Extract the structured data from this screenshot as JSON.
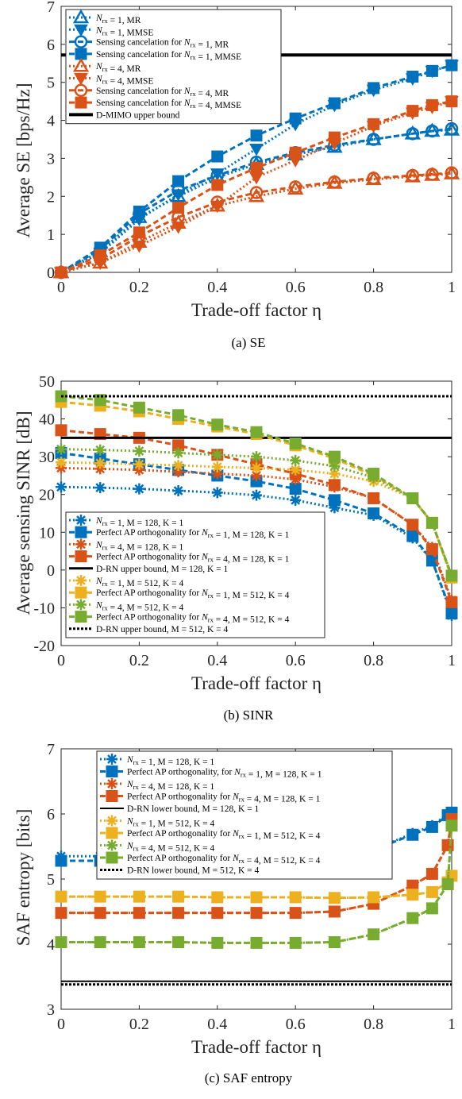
{
  "chart_data": [
    {
      "type": "line",
      "caption": "(a) SE",
      "xlabel": "Trade-off factor η",
      "ylabel": "Average SE [bps/Hz]",
      "xlim": [
        0,
        1
      ],
      "ylim": [
        0,
        7
      ],
      "xticks": [
        "0",
        "0.2",
        "0.4",
        "0.6",
        "0.8",
        "1"
      ],
      "yticks": [
        "0",
        "1",
        "2",
        "3",
        "4",
        "5",
        "6",
        "7"
      ],
      "legend_position": "top-left",
      "x": [
        0,
        0.1,
        0.2,
        0.3,
        0.4,
        0.5,
        0.6,
        0.7,
        0.8,
        0.9,
        0.95,
        1
      ],
      "series": [
        {
          "name": "N_rx = 1, MR",
          "color": "#0072BD",
          "dash": "dot",
          "marker": "triangle-up-open",
          "values": [
            0,
            0.55,
            1.45,
            2.0,
            2.5,
            2.85,
            3.1,
            3.3,
            3.5,
            3.65,
            3.72,
            3.75
          ]
        },
        {
          "name": "N_rx = 1, MMSE",
          "color": "#0072BD",
          "dash": "dot",
          "marker": "triangle-down",
          "values": [
            0,
            0.5,
            1.4,
            2.05,
            2.6,
            3.25,
            3.9,
            4.4,
            4.8,
            5.1,
            5.3,
            5.45
          ]
        },
        {
          "name": "Sensing cancelation for N_rx = 1, MR",
          "color": "#0072BD",
          "dash": "dash",
          "marker": "circle-open",
          "values": [
            0,
            0.6,
            1.55,
            2.15,
            2.55,
            2.9,
            3.15,
            3.35,
            3.5,
            3.65,
            3.72,
            3.78
          ]
        },
        {
          "name": "Sensing cancelation for N_rx = 1, MMSE",
          "color": "#0072BD",
          "dash": "dash",
          "marker": "square",
          "values": [
            0,
            0.65,
            1.6,
            2.4,
            3.05,
            3.6,
            4.05,
            4.45,
            4.85,
            5.15,
            5.3,
            5.45
          ]
        },
        {
          "name": "N_rx = 4, MR",
          "color": "#D95319",
          "dash": "dot",
          "marker": "triangle-up-open",
          "values": [
            0,
            0.25,
            0.8,
            1.3,
            1.75,
            2.0,
            2.2,
            2.35,
            2.45,
            2.52,
            2.56,
            2.6
          ]
        },
        {
          "name": "N_rx = 4, MMSE",
          "color": "#D95319",
          "dash": "dot",
          "marker": "triangle-down",
          "values": [
            0,
            0.25,
            0.7,
            1.2,
            1.75,
            2.5,
            2.95,
            3.4,
            3.85,
            4.2,
            4.35,
            4.5
          ]
        },
        {
          "name": "Sensing cancelation for N_rx = 4, MR",
          "color": "#D95319",
          "dash": "dash",
          "marker": "circle-open",
          "values": [
            0,
            0.35,
            0.95,
            1.45,
            1.85,
            2.1,
            2.25,
            2.38,
            2.48,
            2.55,
            2.58,
            2.62
          ]
        },
        {
          "name": "Sensing cancelation for N_rx = 4, MMSE",
          "color": "#D95319",
          "dash": "dash",
          "marker": "square",
          "values": [
            0,
            0.45,
            1.05,
            1.7,
            2.3,
            2.75,
            3.15,
            3.55,
            3.9,
            4.25,
            4.4,
            4.5
          ]
        },
        {
          "name": "D-MIMO upper bound",
          "color": "#000000",
          "dash": "solid",
          "marker": "none",
          "width": 4,
          "values": [
            5.72,
            5.72,
            5.72,
            5.72,
            5.72,
            5.72,
            5.72,
            5.72,
            5.72,
            5.72,
            5.72,
            5.72
          ]
        }
      ]
    },
    {
      "type": "line",
      "caption": "(b) SINR",
      "xlabel": "Trade-off factor η",
      "ylabel": "Average sensing SINR [dB]",
      "xlim": [
        0,
        1
      ],
      "ylim": [
        -20,
        50
      ],
      "xticks": [
        "0",
        "0.2",
        "0.4",
        "0.6",
        "0.8",
        "1"
      ],
      "yticks": [
        "-20",
        "-10",
        "0",
        "10",
        "20",
        "30",
        "40",
        "50"
      ],
      "legend_position": "bottom-left",
      "x": [
        0,
        0.1,
        0.2,
        0.3,
        0.4,
        0.5,
        0.6,
        0.7,
        0.8,
        0.9,
        0.95,
        1
      ],
      "series": [
        {
          "name": "N_rx = 1, M = 128, K = 1",
          "color": "#0072BD",
          "dash": "dot",
          "marker": "asterisk",
          "values": [
            22,
            21.8,
            21.5,
            21.0,
            20.5,
            19.8,
            18.5,
            16.5,
            14.5,
            8.5,
            2.5,
            -12
          ]
        },
        {
          "name": "Perfect AP orthogonality for N_rx = 1, M = 128, K = 1",
          "color": "#0072BD",
          "dash": "dash",
          "marker": "square",
          "values": [
            31,
            29.5,
            28,
            26.5,
            25,
            23.5,
            21.5,
            18.5,
            15,
            9,
            2.5,
            -11.5
          ]
        },
        {
          "name": "N_rx = 4, M = 128, K = 1",
          "color": "#D95319",
          "dash": "dot",
          "marker": "asterisk",
          "values": [
            27,
            26.8,
            26.5,
            26.0,
            25.5,
            25.0,
            24.0,
            22.0,
            19.0,
            12,
            6,
            -8
          ]
        },
        {
          "name": "Perfect AP orthogonality for N_rx = 4, M = 128, K = 1",
          "color": "#D95319",
          "dash": "dash",
          "marker": "square",
          "values": [
            37,
            36,
            35,
            33,
            30.5,
            28,
            25.5,
            22.5,
            19,
            12,
            5.5,
            -8.5
          ]
        },
        {
          "name": "D-RN upper bound, M = 128, K = 1",
          "color": "#000000",
          "dash": "solid",
          "marker": "none",
          "width": 3,
          "values": [
            35,
            35,
            35,
            35,
            35,
            35,
            35,
            35,
            35,
            35,
            35,
            35
          ]
        },
        {
          "name": "N_rx = 1, M = 512, K = 4",
          "color": "#EDB120",
          "dash": "dot",
          "marker": "asterisk",
          "values": [
            28.5,
            28.3,
            28.0,
            27.7,
            27.3,
            27.0,
            26.5,
            25.5,
            23.5,
            19,
            12.5,
            -2
          ]
        },
        {
          "name": "Perfect AP orthogonality for N_rx = 1, M = 512, K = 4",
          "color": "#EDB120",
          "dash": "dash",
          "marker": "square",
          "values": [
            44.5,
            43.5,
            42,
            40,
            38,
            36,
            33,
            29.5,
            25,
            19,
            12.5,
            -2
          ]
        },
        {
          "name": "N_rx = 4, M = 512, K = 4",
          "color": "#77AC30",
          "dash": "dot",
          "marker": "asterisk",
          "values": [
            32,
            31.8,
            31.5,
            31.0,
            30.5,
            30.0,
            29.0,
            27.5,
            24.5,
            19,
            12.5,
            -1.5
          ]
        },
        {
          "name": "Perfect AP orthogonality for N_rx = 4, M = 512, K = 4",
          "color": "#77AC30",
          "dash": "dash",
          "marker": "square",
          "values": [
            46,
            45,
            43,
            41,
            38.5,
            36.5,
            33.5,
            30,
            25.5,
            19,
            12.5,
            -1.5
          ]
        },
        {
          "name": "D-RN upper bound, M = 512, K = 4",
          "color": "#000000",
          "dash": "densedot",
          "marker": "none",
          "width": 3,
          "values": [
            46,
            46,
            46,
            46,
            46,
            46,
            46,
            46,
            46,
            46,
            46,
            46
          ]
        }
      ]
    },
    {
      "type": "line",
      "caption": "(c) SAF entropy",
      "xlabel": "Trade-off factor η",
      "ylabel": "SAF entropy [bits]",
      "xlim": [
        0,
        1
      ],
      "ylim": [
        3,
        7
      ],
      "xticks": [
        "0",
        "0.2",
        "0.4",
        "0.6",
        "0.8",
        "1"
      ],
      "yticks": [
        "3",
        "4",
        "5",
        "6",
        "7"
      ],
      "legend_position": "top-center",
      "x": [
        0,
        0.1,
        0.2,
        0.3,
        0.4,
        0.5,
        0.6,
        0.7,
        0.8,
        0.9,
        0.95,
        0.99,
        1
      ],
      "series": [
        {
          "name": "N_rx = 1, M = 128, K = 1",
          "color": "#0072BD",
          "dash": "dot",
          "marker": "asterisk",
          "values": [
            5.35,
            5.35,
            5.35,
            5.35,
            5.35,
            5.35,
            5.35,
            5.38,
            5.45,
            5.7,
            5.82,
            6.0,
            6.02
          ]
        },
        {
          "name": "Perfect AP orthogonality, for N_rx = 1, M = 128, K = 1",
          "color": "#0072BD",
          "dash": "dash",
          "marker": "square",
          "values": [
            5.28,
            5.28,
            5.28,
            5.28,
            5.28,
            5.28,
            5.29,
            5.33,
            5.45,
            5.68,
            5.8,
            5.98,
            6.02
          ]
        },
        {
          "name": "N_rx = 4, M = 128, K = 1",
          "color": "#D95319",
          "dash": "dot",
          "marker": "asterisk",
          "values": [
            4.48,
            4.48,
            4.48,
            4.48,
            4.48,
            4.48,
            4.48,
            4.5,
            4.62,
            4.9,
            5.08,
            5.52,
            5.92
          ]
        },
        {
          "name": "Perfect AP orthogonality for N_rx = 4, M = 128, K = 1",
          "color": "#D95319",
          "dash": "dash",
          "marker": "square",
          "values": [
            4.48,
            4.48,
            4.48,
            4.48,
            4.48,
            4.48,
            4.48,
            4.5,
            4.62,
            4.9,
            5.08,
            5.52,
            5.92
          ]
        },
        {
          "name": "D-RN lower bound, M = 128, K = 1",
          "color": "#000000",
          "dash": "solid",
          "marker": "none",
          "width": 2,
          "values": [
            3.43,
            3.43,
            3.43,
            3.43,
            3.43,
            3.43,
            3.43,
            3.43,
            3.43,
            3.43,
            3.43,
            3.43,
            3.43
          ]
        },
        {
          "name": "N_rx = 1, M = 512, K = 4",
          "color": "#EDB120",
          "dash": "dot",
          "marker": "asterisk",
          "values": [
            4.73,
            4.73,
            4.73,
            4.73,
            4.72,
            4.72,
            4.72,
            4.71,
            4.72,
            4.76,
            4.8,
            4.95,
            5.05
          ]
        },
        {
          "name": "Perfect AP orthogonality for N_rx = 1, M = 512, K = 4",
          "color": "#EDB120",
          "dash": "dash",
          "marker": "square",
          "values": [
            4.73,
            4.73,
            4.73,
            4.73,
            4.72,
            4.72,
            4.72,
            4.71,
            4.72,
            4.76,
            4.8,
            4.95,
            5.05
          ]
        },
        {
          "name": "N_rx = 4, M = 512, K = 4",
          "color": "#77AC30",
          "dash": "dot",
          "marker": "asterisk",
          "values": [
            4.03,
            4.03,
            4.03,
            4.03,
            4.02,
            4.02,
            4.02,
            4.03,
            4.15,
            4.4,
            4.55,
            4.92,
            5.82
          ]
        },
        {
          "name": "Perfect AP orthogonality for N_rx = 4, M = 512, K = 4",
          "color": "#77AC30",
          "dash": "dash",
          "marker": "square",
          "values": [
            4.03,
            4.03,
            4.03,
            4.03,
            4.02,
            4.02,
            4.02,
            4.03,
            4.15,
            4.4,
            4.55,
            4.92,
            5.82
          ]
        },
        {
          "name": "D-RN lower bound, M = 512, K = 4",
          "color": "#000000",
          "dash": "densedot",
          "marker": "none",
          "width": 3,
          "values": [
            3.38,
            3.38,
            3.38,
            3.38,
            3.38,
            3.38,
            3.38,
            3.38,
            3.38,
            3.38,
            3.38,
            3.38,
            3.38
          ]
        }
      ]
    }
  ]
}
